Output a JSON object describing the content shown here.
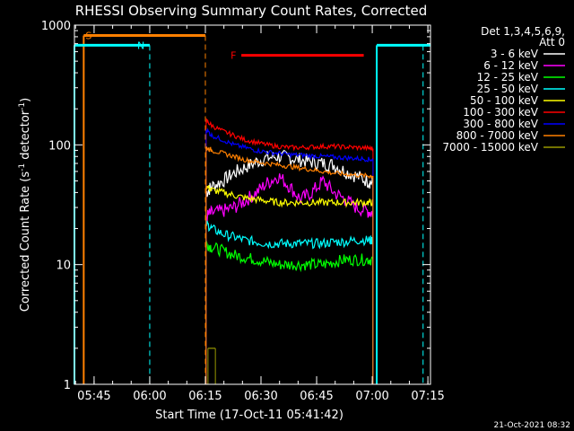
{
  "chart_data": {
    "type": "line",
    "title": "RHESSI Observing Summary Count Rates, Corrected",
    "xlabel": "Start Time (17-Oct-11 05:41:42)",
    "ylabel_main": "Corrected Count Rate (s",
    "ylabel_sup1": "-1",
    "ylabel_mid": " detector",
    "ylabel_sup2": "-1",
    "ylabel_end": ")",
    "y_scale": "log",
    "ylim": [
      1,
      1000
    ],
    "xlim_minutes": [
      -2,
      94
    ],
    "x_tick_labels": [
      {
        "label": "05:45",
        "minute": 3.3
      },
      {
        "label": "06:00",
        "minute": 18.3
      },
      {
        "label": "06:15",
        "minute": 33.3
      },
      {
        "label": "06:30",
        "minute": 48.3
      },
      {
        "label": "06:45",
        "minute": 63.3
      },
      {
        "label": "07:00",
        "minute": 78.3
      },
      {
        "label": "07:15",
        "minute": 93.3
      }
    ],
    "y_tick_labels": [
      {
        "label": "1",
        "value": 1
      },
      {
        "label": "10",
        "value": 10
      },
      {
        "label": "100",
        "value": 100
      },
      {
        "label": "1000",
        "value": 1000
      }
    ],
    "legend_header": [
      "Det 1,3,4,5,6,9,",
      "Att 0"
    ],
    "series": [
      {
        "name": "3 - 6 keV",
        "color": "#ffffff",
        "x": [
          33.5,
          35,
          38,
          41,
          44,
          47,
          50,
          53,
          56,
          59,
          62,
          65,
          68,
          71,
          74,
          77,
          78.5
        ],
        "y": [
          40,
          45,
          50,
          58,
          65,
          72,
          78,
          80,
          78,
          75,
          72,
          70,
          68,
          60,
          55,
          50,
          48
        ]
      },
      {
        "name": "6 - 12 keV",
        "color": "#ff00ff",
        "x": [
          33.5,
          35,
          38,
          41,
          44,
          47,
          50,
          53,
          56,
          59,
          62,
          65,
          68,
          71,
          74,
          77,
          78.5
        ],
        "y": [
          25,
          27,
          28,
          30,
          34,
          40,
          48,
          55,
          45,
          35,
          40,
          50,
          40,
          35,
          30,
          28,
          27
        ]
      },
      {
        "name": "12 - 25 keV",
        "color": "#00ff00",
        "x": [
          33.5,
          35,
          38,
          41,
          44,
          47,
          50,
          53,
          56,
          59,
          62,
          65,
          68,
          71,
          74,
          77,
          78.5
        ],
        "y": [
          15,
          14,
          13,
          12,
          11.5,
          11,
          10.5,
          10,
          10,
          10,
          10,
          10,
          10.5,
          11,
          11,
          11,
          11
        ]
      },
      {
        "name": "25 - 50 keV",
        "color": "#00ffff",
        "x": [
          33.5,
          35,
          38,
          41,
          44,
          47,
          50,
          53,
          56,
          59,
          62,
          65,
          68,
          71,
          74,
          77,
          78.5
        ],
        "y": [
          22,
          20,
          18,
          17,
          16,
          15.5,
          15,
          15,
          15,
          15,
          15,
          15,
          15.5,
          15.5,
          16,
          16,
          16
        ]
      },
      {
        "name": "50 - 100 keV",
        "color": "#ffff00",
        "x": [
          33.5,
          35,
          38,
          41,
          44,
          47,
          50,
          53,
          56,
          59,
          62,
          65,
          68,
          71,
          74,
          77,
          78.5
        ],
        "y": [
          45,
          42,
          40,
          38,
          36,
          35,
          34,
          33,
          33,
          33,
          33,
          33,
          33,
          33,
          33,
          33,
          33
        ]
      },
      {
        "name": "100 - 300 keV",
        "color": "#ff0000",
        "x": [
          33.5,
          35,
          38,
          41,
          44,
          47,
          50,
          53,
          56,
          59,
          62,
          65,
          68,
          71,
          74,
          77,
          78.5
        ],
        "y": [
          160,
          145,
          130,
          120,
          110,
          105,
          100,
          97,
          95,
          95,
          96,
          97,
          97,
          96,
          95,
          94,
          93
        ]
      },
      {
        "name": "300 - 800 keV",
        "color": "#0000ff",
        "x": [
          33.5,
          35,
          38,
          41,
          44,
          47,
          50,
          53,
          56,
          59,
          62,
          65,
          68,
          71,
          74,
          77,
          78.5
        ],
        "y": [
          135,
          120,
          110,
          100,
          95,
          90,
          87,
          85,
          83,
          82,
          81,
          80,
          79,
          78,
          77,
          76,
          75
        ]
      },
      {
        "name": "800 - 7000 keV",
        "color": "#ff8000",
        "x": [
          33.5,
          35,
          38,
          41,
          44,
          47,
          50,
          53,
          56,
          59,
          62,
          65,
          68,
          71,
          74,
          77,
          78.5
        ],
        "y": [
          95,
          90,
          85,
          80,
          75,
          72,
          70,
          68,
          66,
          64,
          62,
          60,
          58,
          57,
          56,
          55,
          55
        ]
      },
      {
        "name": "7000 - 15000 keV",
        "color": "#999900",
        "x": [
          34,
          35,
          36
        ],
        "y": [
          2,
          2,
          2
        ]
      }
    ],
    "flags": [
      {
        "label": "S",
        "color": "#ff8000",
        "start": 0.5,
        "end": 33.3,
        "level": 820
      },
      {
        "label": "N",
        "color": "#00ffff",
        "start": -2,
        "end": 18.3,
        "level": 680
      },
      {
        "label": "F",
        "color": "#ff0000",
        "start": 43,
        "end": 76,
        "level": 560
      }
    ],
    "footer_date": "21-Oct-2021 08:32"
  }
}
